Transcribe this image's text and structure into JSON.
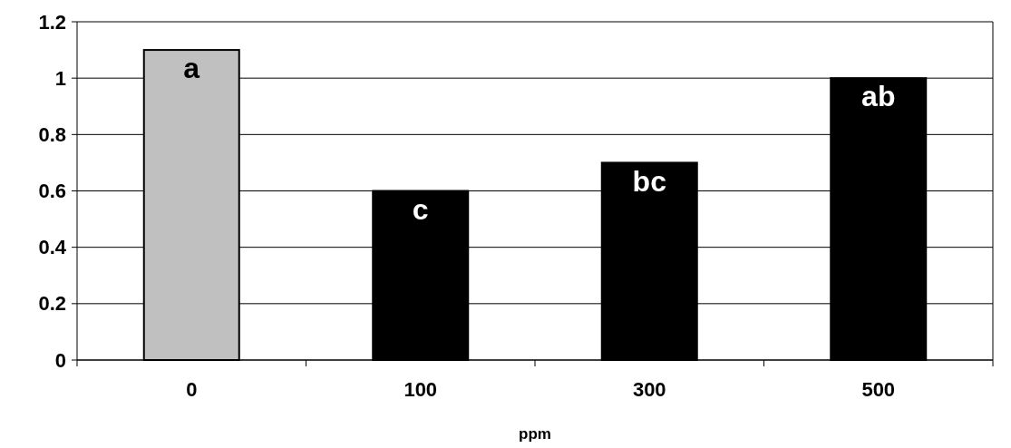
{
  "chart_data": {
    "type": "bar",
    "xlabel": "ppm",
    "categories": [
      "0",
      "100",
      "300",
      "500"
    ],
    "values": [
      1.1,
      0.6,
      0.7,
      1.0
    ],
    "colors": [
      "#c0c0c0",
      "#000000",
      "#000000",
      "#000000"
    ],
    "ylim": [
      0,
      1.2
    ],
    "yticks": [
      0,
      0.2,
      0.4,
      0.6,
      0.8,
      1,
      1.2
    ],
    "grid": "y",
    "annotations": [
      {
        "text": "a",
        "x": "0",
        "y": 1.1
      },
      {
        "text": "c",
        "x": "100",
        "y": 0.6
      },
      {
        "text": "bc",
        "x": "300",
        "y": 0.7
      },
      {
        "text": "ab",
        "x": "500",
        "y": 1.0
      }
    ]
  }
}
